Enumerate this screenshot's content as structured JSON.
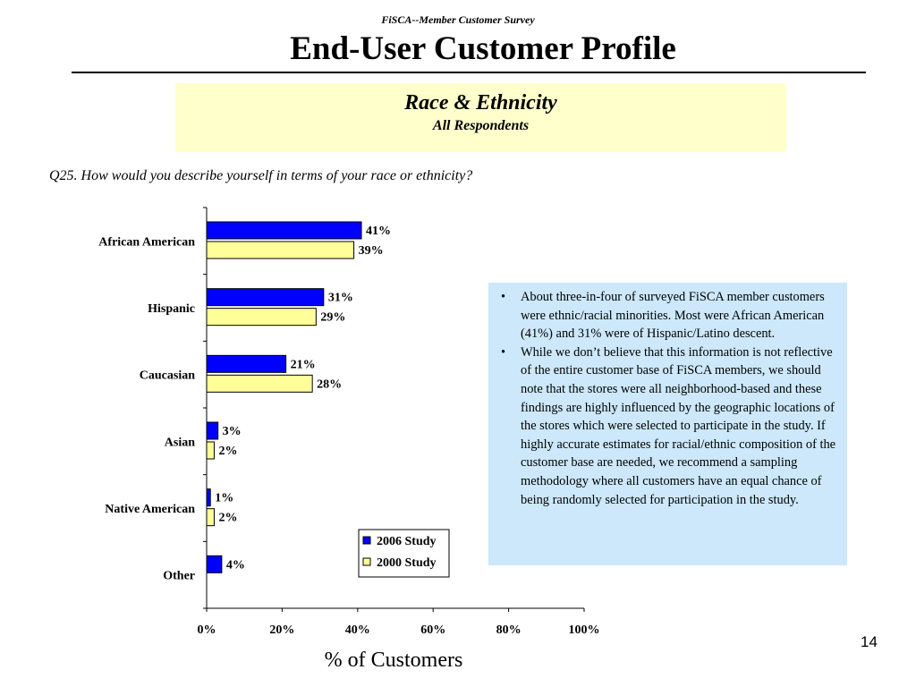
{
  "header": {
    "survey_label": "FiSCA--Member Customer Survey",
    "title": "End-User Customer Profile"
  },
  "subtitle": {
    "main": "Race & Ethnicity",
    "sub": "All Respondents"
  },
  "question": "Q25.  How would you describe yourself in terms of your race or ethnicity?",
  "notes": [
    "About three-in-four of surveyed FiSCA member customers were ethnic/racial minorities.  Most were African American (41%) and 31% were of Hispanic/Latino descent.",
    "While we don’t believe that this information is not reflective of the entire customer base of FiSCA members, we should note that the stores were all neighborhood-based and these findings are highly influenced by the geographic locations of the stores which were selected to participate in the study. If highly accurate estimates for racial/ethnic composition of the customer base are needed, we recommend a sampling methodology where all customers have an equal chance of being randomly selected for participation in the study."
  ],
  "page_number": "14",
  "chart_data": {
    "type": "bar",
    "orientation": "horizontal",
    "categories": [
      "African American",
      "Hispanic",
      "Caucasian",
      "Asian",
      "Native American",
      "Other"
    ],
    "series": [
      {
        "name": "2006 Study",
        "values": [
          41,
          31,
          21,
          3,
          1,
          4
        ],
        "labels": [
          "41%",
          "31%",
          "21%",
          "3%",
          "1%",
          "4%"
        ],
        "color": "#0000ff"
      },
      {
        "name": "2000 Study",
        "values": [
          39,
          29,
          28,
          2,
          2,
          null
        ],
        "labels": [
          "39%",
          "29%",
          "28%",
          "2%",
          "2%",
          ""
        ],
        "color": "#ffff99"
      }
    ],
    "xlim": [
      0,
      100
    ],
    "xticks": [
      "0%",
      "20%",
      "40%",
      "60%",
      "80%",
      "100%"
    ],
    "xlabel": "% of Customers",
    "legend_position": "bottom-right",
    "grid": false
  }
}
